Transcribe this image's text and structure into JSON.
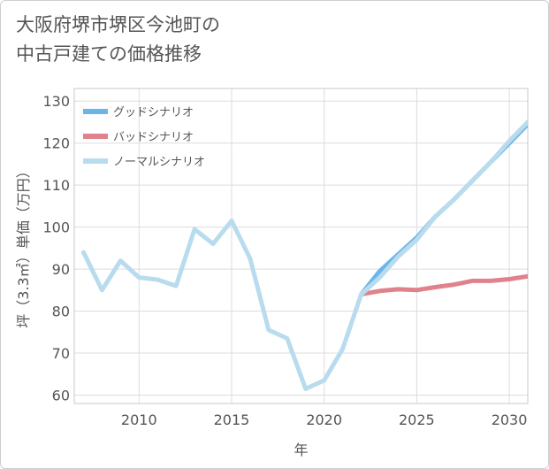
{
  "title": {
    "line1": "大阪府堺市堺区今池町の",
    "line2": "中古戸建ての価格推移"
  },
  "chart_data": {
    "type": "line",
    "title": "大阪府堺市堺区今池町の中古戸建ての価格推移",
    "xlabel": "年",
    "ylabel": "坪（3.3㎡）単価（万円）",
    "xlim": [
      2006.5,
      2031
    ],
    "ylim": [
      58,
      133
    ],
    "xticks": [
      2010,
      2015,
      2020,
      2025,
      2030
    ],
    "yticks": [
      60,
      70,
      80,
      90,
      100,
      110,
      120,
      130
    ],
    "grid": true,
    "legend_position": "top-left",
    "series": [
      {
        "name": "グッドシナリオ",
        "color": "#6bb5e8",
        "x": [
          2022,
          2023,
          2024,
          2025,
          2026,
          2027,
          2028,
          2029,
          2030,
          2031
        ],
        "y": [
          84,
          89.5,
          93.5,
          97.5,
          102.5,
          106.5,
          111,
          115.5,
          120,
          124.5
        ]
      },
      {
        "name": "バッドシナリオ",
        "color": "#e0828c",
        "x": [
          2022,
          2023,
          2024,
          2025,
          2026,
          2027,
          2028,
          2029,
          2030,
          2031
        ],
        "y": [
          84,
          84.8,
          85.2,
          85,
          85.7,
          86.3,
          87.2,
          87.2,
          87.6,
          88.3
        ]
      },
      {
        "name": "ノーマルシナリオ",
        "color": "#b8dcee",
        "x": [
          2007,
          2008,
          2009,
          2010,
          2011,
          2012,
          2013,
          2014,
          2015,
          2016,
          2017,
          2018,
          2019,
          2020,
          2021,
          2022,
          2023,
          2024,
          2025,
          2026,
          2027,
          2028,
          2029,
          2030,
          2031
        ],
        "y": [
          94,
          85,
          92,
          88,
          87.5,
          86,
          99.5,
          96,
          101.5,
          92.5,
          75.5,
          73.5,
          61.5,
          63.5,
          71,
          84,
          88,
          93,
          97,
          102.5,
          106.5,
          111,
          115.5,
          120.5,
          125
        ]
      }
    ]
  }
}
